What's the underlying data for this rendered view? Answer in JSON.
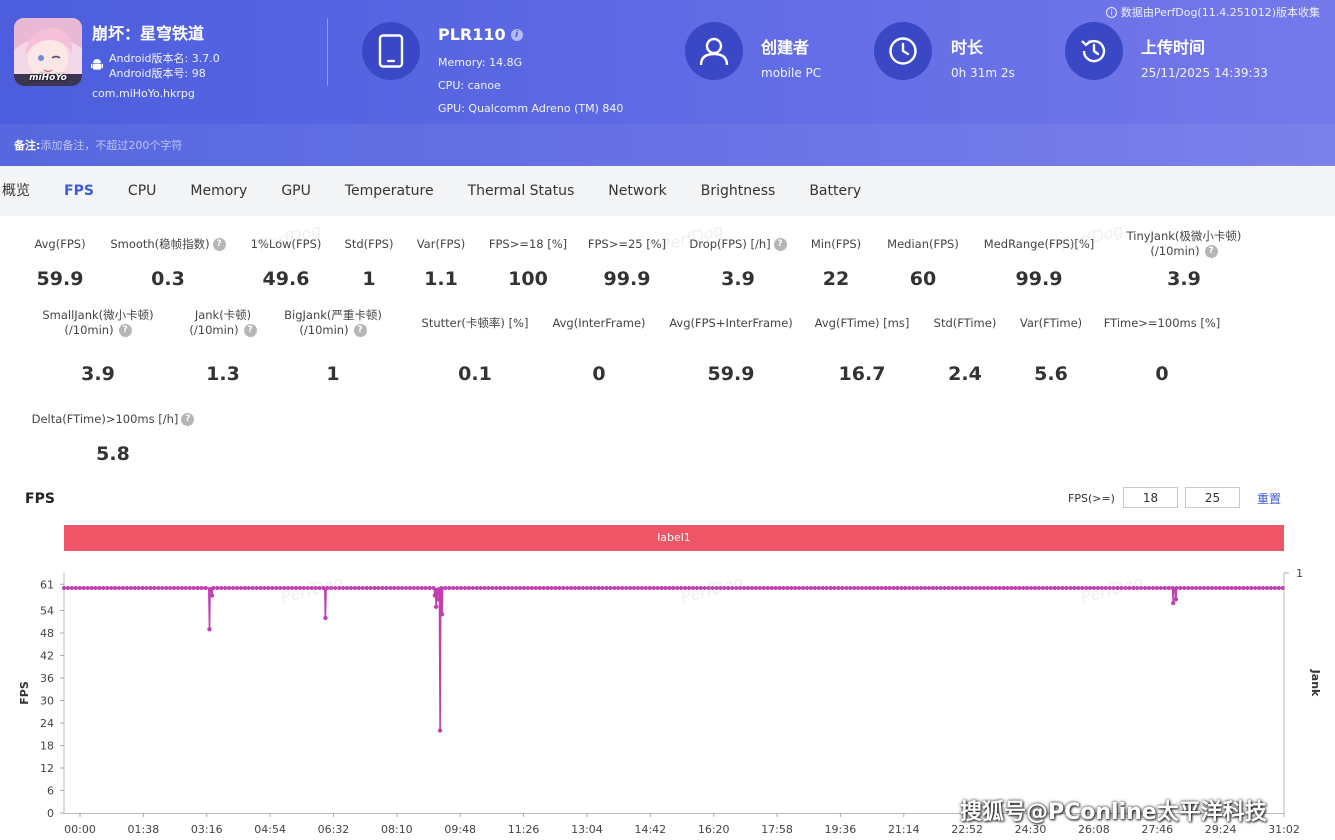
{
  "header": {
    "collected_by": "数据由PerfDog(11.4.251012)版本收集",
    "app": {
      "logo_text": "miHoYo",
      "title": "崩坏：星穹铁道",
      "version_name": "Android版本名: 3.7.0",
      "version_code": "Android版本号: 98",
      "package": "com.miHoYo.hkrpg"
    },
    "device": {
      "name": "PLR110",
      "memory": "Memory: 14.8G",
      "cpu": "CPU: canoe",
      "gpu": "GPU: Qualcomm Adreno (TM) 840"
    },
    "creator": {
      "label": "创建者",
      "value": "mobile PC"
    },
    "duration": {
      "label": "时长",
      "value": "0h 31m 2s"
    },
    "upload": {
      "label": "上传时间",
      "value": "25/11/2025 14:39:33"
    },
    "note": {
      "label": "备注:",
      "placeholder": "添加备注，不超过200个字符"
    }
  },
  "tabs": [
    "概览",
    "FPS",
    "CPU",
    "Memory",
    "GPU",
    "Temperature",
    "Thermal Status",
    "Network",
    "Brightness",
    "Battery"
  ],
  "active_tab": "FPS",
  "metrics": {
    "row1": [
      {
        "label": "Avg(FPS)",
        "value": "59.9"
      },
      {
        "label": "Smooth(稳帧指数)",
        "value": "0.3"
      },
      {
        "label": "1%Low(FPS)",
        "value": "49.6"
      },
      {
        "label": "Std(FPS)",
        "value": "1"
      },
      {
        "label": "Var(FPS)",
        "value": "1.1"
      },
      {
        "label": "FPS>=18 [%]",
        "value": "100"
      },
      {
        "label": "FPS>=25 [%]",
        "value": "99.9"
      },
      {
        "label": "Drop(FPS) [/h]",
        "value": "3.9"
      },
      {
        "label": "Min(FPS)",
        "value": "22"
      },
      {
        "label": "Median(FPS)",
        "value": "60"
      },
      {
        "label": "MedRange(FPS)[%]",
        "value": "99.9"
      },
      {
        "label": "TinyJank(极微小卡顿)",
        "label2": "(/10min)",
        "value": "3.9"
      }
    ],
    "row2": [
      {
        "label": "SmallJank(微小卡顿)",
        "label2": "(/10min)",
        "value": "3.9"
      },
      {
        "label": "Jank(卡顿)",
        "label2": "(/10min)",
        "value": "1.3"
      },
      {
        "label": "BigJank(严重卡顿)",
        "label2": "(/10min)",
        "value": "1"
      },
      {
        "label": "Stutter(卡顿率) [%]",
        "value": "0.1"
      },
      {
        "label": "Avg(InterFrame)",
        "value": "0"
      },
      {
        "label": "Avg(FPS+InterFrame)",
        "value": "59.9"
      },
      {
        "label": "Avg(FTime) [ms]",
        "value": "16.7"
      },
      {
        "label": "Std(FTime)",
        "value": "2.4"
      },
      {
        "label": "Var(FTime)",
        "value": "5.6"
      },
      {
        "label": "FTime>=100ms [%]",
        "value": "0"
      }
    ],
    "row3": [
      {
        "label": "Delta(FTime)>100ms [/h]",
        "value": "5.8"
      }
    ]
  },
  "fps_section": {
    "title": "FPS",
    "threshold_label": "FPS(>=)",
    "threshold1": "18",
    "threshold2": "25",
    "reset_label": "重置",
    "label_bar": "label1",
    "watermark": "PerfDog"
  },
  "chart_data": {
    "type": "line",
    "ylabel": "FPS",
    "y2label": "Jank",
    "y_ticks": [
      0,
      6,
      12,
      18,
      24,
      30,
      36,
      42,
      48,
      54,
      61
    ],
    "y2_ticks": [
      1
    ],
    "ylim": [
      0,
      64
    ],
    "y2lim": [
      0,
      1
    ],
    "x_ticks": [
      "00:00",
      "01:38",
      "03:16",
      "04:54",
      "06:32",
      "08:10",
      "09:48",
      "11:26",
      "13:04",
      "14:42",
      "16:20",
      "17:58",
      "19:36",
      "21:14",
      "22:52",
      "24:30",
      "26:08",
      "27:46",
      "29:24",
      "31:02"
    ],
    "x_range_seconds": [
      0,
      1862
    ],
    "series": [
      {
        "color": "#c040b0",
        "baseline": 60,
        "dips": [
          {
            "t": 222,
            "v": 49
          },
          {
            "t": 226,
            "v": 58
          },
          {
            "t": 399,
            "v": 52
          },
          {
            "t": 566,
            "v": 58
          },
          {
            "t": 568,
            "v": 55
          },
          {
            "t": 570,
            "v": 57
          },
          {
            "t": 574,
            "v": 22
          },
          {
            "t": 577,
            "v": 53
          },
          {
            "t": 1693,
            "v": 56
          },
          {
            "t": 1697,
            "v": 57
          }
        ]
      }
    ]
  },
  "footer_watermark": "搜狐号@PConline太平洋科技"
}
